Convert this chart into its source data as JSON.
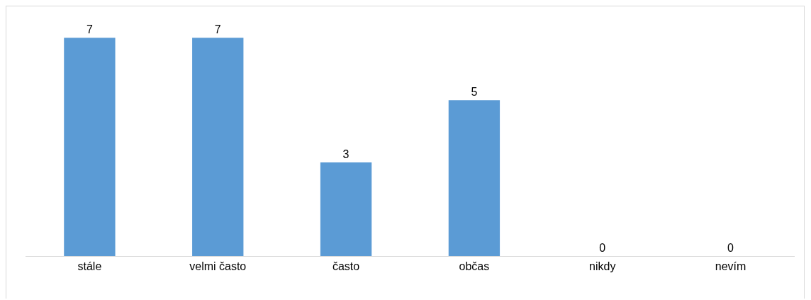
{
  "chart_data": {
    "type": "bar",
    "categories": [
      "stále",
      "velmi často",
      "často",
      "občas",
      "nikdy",
      "nevím"
    ],
    "values": [
      7,
      7,
      3,
      5,
      0,
      0
    ],
    "color": "#5b9bd5",
    "data_labels": true,
    "tick_labels": "x"
  }
}
